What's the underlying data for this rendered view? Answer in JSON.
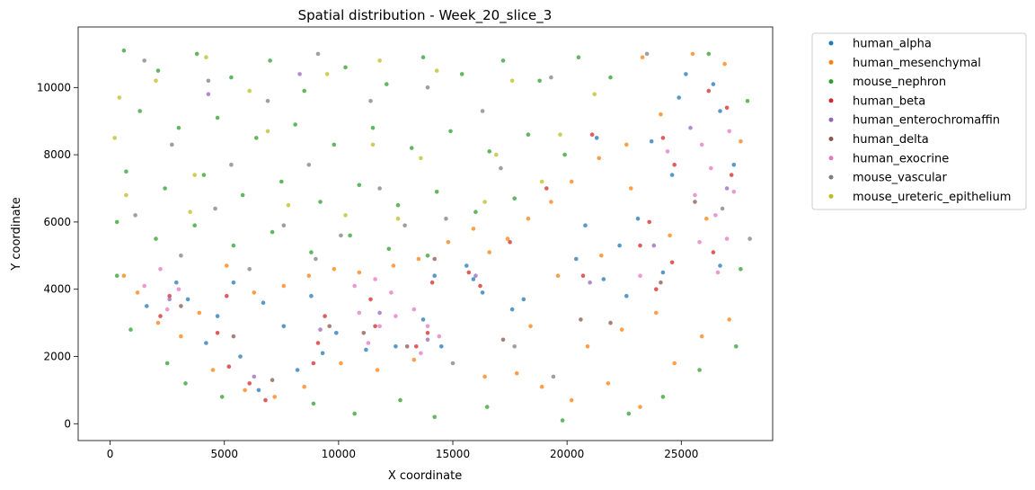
{
  "chart_data": {
    "type": "scatter",
    "title": "Spatial distribution - Week_20_slice_3",
    "xlabel": "X coordinate",
    "ylabel": "Y coordinate",
    "xlim": [
      -1400,
      29000
    ],
    "ylim": [
      -500,
      11800
    ],
    "xticks": [
      0,
      5000,
      10000,
      15000,
      20000,
      25000
    ],
    "yticks": [
      0,
      2000,
      4000,
      6000,
      8000,
      10000
    ],
    "legend_position": "outside-right",
    "grid": false,
    "series": [
      {
        "name": "human_alpha",
        "color": "#1f77b4",
        "points": [
          [
            25200,
            10400
          ],
          [
            26400,
            10100
          ],
          [
            24900,
            9700
          ],
          [
            26700,
            9300
          ],
          [
            23700,
            8400
          ],
          [
            24600,
            7400
          ],
          [
            23100,
            6100
          ],
          [
            22300,
            5300
          ],
          [
            24200,
            4500
          ],
          [
            22600,
            3800
          ],
          [
            27300,
            7700
          ],
          [
            26700,
            4700
          ],
          [
            20400,
            4900
          ],
          [
            21600,
            4300
          ],
          [
            20800,
            5900
          ],
          [
            21300,
            8500
          ],
          [
            15600,
            4700
          ],
          [
            16300,
            3900
          ],
          [
            15900,
            4300
          ],
          [
            14200,
            4400
          ],
          [
            13700,
            3100
          ],
          [
            14500,
            2300
          ],
          [
            17600,
            3400
          ],
          [
            18100,
            3700
          ],
          [
            11200,
            2200
          ],
          [
            12500,
            2300
          ],
          [
            9900,
            2700
          ],
          [
            8800,
            3800
          ],
          [
            9300,
            2100
          ],
          [
            7600,
            2900
          ],
          [
            6700,
            3600
          ],
          [
            5400,
            4200
          ],
          [
            4700,
            3200
          ],
          [
            5700,
            2000
          ],
          [
            6500,
            1000
          ],
          [
            3400,
            3700
          ],
          [
            1600,
            3500
          ],
          [
            2900,
            4200
          ],
          [
            4200,
            2400
          ],
          [
            8200,
            1600
          ]
        ]
      },
      {
        "name": "human_mesenchymal",
        "color": "#ff7f0e",
        "points": [
          [
            25500,
            11000
          ],
          [
            26900,
            10700
          ],
          [
            23300,
            10900
          ],
          [
            24100,
            9200
          ],
          [
            22600,
            8300
          ],
          [
            21400,
            7900
          ],
          [
            20200,
            7200
          ],
          [
            19300,
            6600
          ],
          [
            18300,
            6100
          ],
          [
            17400,
            5500
          ],
          [
            16600,
            5100
          ],
          [
            15900,
            5800
          ],
          [
            14800,
            5400
          ],
          [
            13500,
            4900
          ],
          [
            12400,
            4700
          ],
          [
            10900,
            4500
          ],
          [
            9800,
            4600
          ],
          [
            8700,
            4400
          ],
          [
            7600,
            4100
          ],
          [
            6300,
            3900
          ],
          [
            5100,
            4700
          ],
          [
            3900,
            3300
          ],
          [
            3100,
            2600
          ],
          [
            2100,
            3000
          ],
          [
            1200,
            3900
          ],
          [
            600,
            4400
          ],
          [
            4500,
            1600
          ],
          [
            5900,
            1000
          ],
          [
            7200,
            800
          ],
          [
            8500,
            1100
          ],
          [
            10100,
            1800
          ],
          [
            11700,
            1600
          ],
          [
            13300,
            1900
          ],
          [
            16400,
            1400
          ],
          [
            17800,
            1500
          ],
          [
            18900,
            1100
          ],
          [
            20200,
            700
          ],
          [
            21800,
            1200
          ],
          [
            23200,
            500
          ],
          [
            24700,
            1800
          ],
          [
            25900,
            2600
          ],
          [
            27100,
            3100
          ],
          [
            26100,
            6100
          ],
          [
            27600,
            8400
          ],
          [
            22800,
            7000
          ],
          [
            19600,
            4400
          ],
          [
            18400,
            2900
          ],
          [
            20900,
            2300
          ],
          [
            22400,
            2800
          ],
          [
            23900,
            3300
          ],
          [
            21500,
            5000
          ],
          [
            24500,
            5600
          ]
        ]
      },
      {
        "name": "mouse_nephron",
        "color": "#2ca02c",
        "points": [
          [
            600,
            11100
          ],
          [
            2100,
            10500
          ],
          [
            3800,
            11000
          ],
          [
            5300,
            10300
          ],
          [
            7000,
            10800
          ],
          [
            8500,
            9900
          ],
          [
            10300,
            10600
          ],
          [
            12100,
            10100
          ],
          [
            13700,
            10900
          ],
          [
            15400,
            10400
          ],
          [
            17200,
            10800
          ],
          [
            18800,
            10200
          ],
          [
            20500,
            10900
          ],
          [
            21900,
            10300
          ],
          [
            1300,
            9300
          ],
          [
            3000,
            8800
          ],
          [
            4700,
            9100
          ],
          [
            6400,
            8500
          ],
          [
            8100,
            8900
          ],
          [
            9800,
            8300
          ],
          [
            11500,
            8800
          ],
          [
            13200,
            8200
          ],
          [
            14900,
            8700
          ],
          [
            16600,
            8100
          ],
          [
            18300,
            8600
          ],
          [
            19900,
            8000
          ],
          [
            700,
            7500
          ],
          [
            2400,
            7000
          ],
          [
            4100,
            7400
          ],
          [
            5800,
            6800
          ],
          [
            7500,
            7200
          ],
          [
            9200,
            6600
          ],
          [
            10900,
            7100
          ],
          [
            12600,
            6500
          ],
          [
            14300,
            6900
          ],
          [
            16000,
            6300
          ],
          [
            17700,
            6700
          ],
          [
            300,
            6000
          ],
          [
            2000,
            5500
          ],
          [
            3700,
            5900
          ],
          [
            5400,
            5300
          ],
          [
            7100,
            5700
          ],
          [
            8800,
            5100
          ],
          [
            10500,
            5600
          ],
          [
            12200,
            5200
          ],
          [
            13900,
            5000
          ],
          [
            300,
            4400
          ],
          [
            900,
            2800
          ],
          [
            2500,
            1800
          ],
          [
            3300,
            1200
          ],
          [
            4900,
            800
          ],
          [
            8900,
            600
          ],
          [
            10700,
            300
          ],
          [
            12700,
            700
          ],
          [
            14200,
            200
          ],
          [
            16500,
            500
          ],
          [
            19800,
            100
          ],
          [
            22700,
            300
          ],
          [
            24200,
            800
          ],
          [
            25800,
            1600
          ],
          [
            27400,
            2300
          ],
          [
            27600,
            4600
          ],
          [
            27900,
            9600
          ],
          [
            26200,
            11000
          ]
        ]
      },
      {
        "name": "human_beta",
        "color": "#d62728",
        "points": [
          [
            26200,
            9900
          ],
          [
            27000,
            9400
          ],
          [
            24200,
            8500
          ],
          [
            24700,
            7700
          ],
          [
            23600,
            6000
          ],
          [
            23200,
            5300
          ],
          [
            24600,
            4800
          ],
          [
            23900,
            4000
          ],
          [
            26400,
            5100
          ],
          [
            27200,
            7400
          ],
          [
            21100,
            8600
          ],
          [
            20700,
            4400
          ],
          [
            15700,
            4500
          ],
          [
            16200,
            4100
          ],
          [
            14100,
            4200
          ],
          [
            13900,
            2700
          ],
          [
            13400,
            2300
          ],
          [
            11600,
            2900
          ],
          [
            11400,
            3700
          ],
          [
            9400,
            3200
          ],
          [
            9100,
            2400
          ],
          [
            8900,
            1800
          ],
          [
            6800,
            700
          ],
          [
            6100,
            1200
          ],
          [
            5200,
            1700
          ],
          [
            4700,
            2700
          ],
          [
            5100,
            3800
          ],
          [
            2600,
            3800
          ],
          [
            2200,
            3200
          ],
          [
            17500,
            5400
          ],
          [
            19100,
            7000
          ]
        ]
      },
      {
        "name": "human_enterochromaffin",
        "color": "#9467bd",
        "points": [
          [
            25400,
            8800
          ],
          [
            23800,
            5300
          ],
          [
            16000,
            4400
          ],
          [
            13900,
            2500
          ],
          [
            11800,
            3300
          ],
          [
            9200,
            2800
          ],
          [
            6300,
            1400
          ],
          [
            2600,
            3700
          ],
          [
            21000,
            4200
          ],
          [
            27000,
            7000
          ],
          [
            4300,
            9800
          ],
          [
            8300,
            10400
          ]
        ]
      },
      {
        "name": "human_delta",
        "color": "#8c564b",
        "points": [
          [
            24100,
            4200
          ],
          [
            21900,
            3000
          ],
          [
            20600,
            3100
          ],
          [
            17200,
            2500
          ],
          [
            14200,
            4900
          ],
          [
            13000,
            2300
          ],
          [
            11100,
            2700
          ],
          [
            9600,
            2900
          ],
          [
            7100,
            1300
          ],
          [
            5400,
            2600
          ],
          [
            3100,
            3500
          ],
          [
            25600,
            6600
          ]
        ]
      },
      {
        "name": "human_exocrine",
        "color": "#e377c2",
        "points": [
          [
            25900,
            8300
          ],
          [
            27100,
            8700
          ],
          [
            26300,
            7600
          ],
          [
            27300,
            6900
          ],
          [
            25600,
            6800
          ],
          [
            26500,
            6200
          ],
          [
            27000,
            5500
          ],
          [
            25800,
            5400
          ],
          [
            26600,
            4500
          ],
          [
            24400,
            8100
          ],
          [
            23200,
            4400
          ],
          [
            10700,
            4100
          ],
          [
            11600,
            4300
          ],
          [
            12300,
            3900
          ],
          [
            10900,
            3300
          ],
          [
            11800,
            2900
          ],
          [
            12500,
            3200
          ],
          [
            11300,
            2400
          ],
          [
            13300,
            3400
          ],
          [
            13900,
            2900
          ],
          [
            14400,
            2600
          ],
          [
            13600,
            2100
          ],
          [
            1500,
            4100
          ],
          [
            2200,
            4600
          ],
          [
            3000,
            4000
          ],
          [
            2500,
            3400
          ]
        ]
      },
      {
        "name": "mouse_vascular",
        "color": "#7f7f7f",
        "points": [
          [
            1500,
            10800
          ],
          [
            4300,
            10200
          ],
          [
            6900,
            9600
          ],
          [
            9100,
            11000
          ],
          [
            11400,
            9600
          ],
          [
            13900,
            10000
          ],
          [
            16300,
            9300
          ],
          [
            19300,
            10300
          ],
          [
            2700,
            8300
          ],
          [
            5300,
            7700
          ],
          [
            8700,
            7700
          ],
          [
            11800,
            7000
          ],
          [
            14700,
            6100
          ],
          [
            17100,
            7600
          ],
          [
            1100,
            6200
          ],
          [
            4600,
            6400
          ],
          [
            7600,
            5900
          ],
          [
            10100,
            5600
          ],
          [
            12900,
            5900
          ],
          [
            3100,
            5000
          ],
          [
            6100,
            4600
          ],
          [
            9000,
            4900
          ],
          [
            15000,
            1800
          ],
          [
            17700,
            2300
          ],
          [
            19400,
            1400
          ],
          [
            26800,
            6400
          ],
          [
            23500,
            11000
          ],
          [
            28000,
            5500
          ]
        ]
      },
      {
        "name": "mouse_ureteric_epithelium",
        "color": "#bcbd22",
        "points": [
          [
            400,
            9700
          ],
          [
            2000,
            10200
          ],
          [
            4200,
            10900
          ],
          [
            6100,
            9900
          ],
          [
            9500,
            10400
          ],
          [
            11800,
            10800
          ],
          [
            14300,
            10500
          ],
          [
            17600,
            10200
          ],
          [
            21200,
            9800
          ],
          [
            200,
            8500
          ],
          [
            3700,
            7400
          ],
          [
            6900,
            8700
          ],
          [
            11500,
            8300
          ],
          [
            13600,
            7900
          ],
          [
            16900,
            8000
          ],
          [
            19700,
            8600
          ],
          [
            700,
            6800
          ],
          [
            3500,
            6300
          ],
          [
            7800,
            6500
          ],
          [
            10300,
            6200
          ],
          [
            12600,
            6100
          ],
          [
            16400,
            6600
          ],
          [
            18900,
            7200
          ]
        ]
      }
    ]
  }
}
